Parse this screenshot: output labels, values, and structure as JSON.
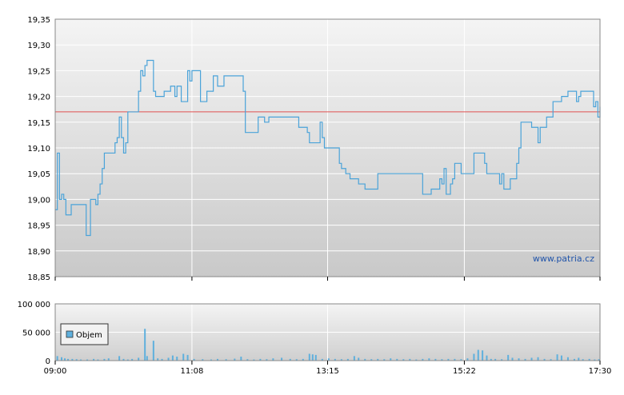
{
  "watermark": "www.patria.cz",
  "legend": {
    "label": "Objem"
  },
  "colors": {
    "price_line": "#4aa3d9",
    "reference_line": "#e05050",
    "volume_bar": "#5fb0dd",
    "plot_bg_top": "#f4f4f4",
    "plot_bg_bottom": "#c8c8c8",
    "grid": "#ffffff"
  },
  "chart_data": [
    {
      "type": "line",
      "name": "price",
      "x_tick_labels": [
        "09:00",
        "11:08",
        "13:15",
        "15:22",
        "17:30"
      ],
      "x_range_minutes": [
        0,
        510
      ],
      "ylim": [
        18.85,
        19.35
      ],
      "y_tick_labels": [
        "18,85",
        "18,90",
        "18,95",
        "19,00",
        "19,05",
        "19,10",
        "19,15",
        "19,20",
        "19,25",
        "19,30",
        "19,35"
      ],
      "y_ticks": [
        18.85,
        18.9,
        18.95,
        19.0,
        19.05,
        19.1,
        19.15,
        19.2,
        19.25,
        19.3,
        19.35
      ],
      "reference_value": 19.17,
      "grid": true,
      "points": [
        [
          0,
          18.98
        ],
        [
          2,
          19.09
        ],
        [
          4,
          19.0
        ],
        [
          6,
          19.01
        ],
        [
          8,
          19.0
        ],
        [
          10,
          18.97
        ],
        [
          13,
          18.97
        ],
        [
          15,
          18.99
        ],
        [
          28,
          18.99
        ],
        [
          29,
          18.93
        ],
        [
          31,
          18.93
        ],
        [
          33,
          19.0
        ],
        [
          37,
          19.0
        ],
        [
          38,
          18.99
        ],
        [
          40,
          19.01
        ],
        [
          42,
          19.03
        ],
        [
          44,
          19.06
        ],
        [
          46,
          19.09
        ],
        [
          54,
          19.09
        ],
        [
          56,
          19.11
        ],
        [
          58,
          19.12
        ],
        [
          60,
          19.16
        ],
        [
          62,
          19.12
        ],
        [
          64,
          19.09
        ],
        [
          66,
          19.11
        ],
        [
          68,
          19.17
        ],
        [
          76,
          19.17
        ],
        [
          78,
          19.21
        ],
        [
          80,
          19.25
        ],
        [
          82,
          19.24
        ],
        [
          84,
          19.26
        ],
        [
          86,
          19.27
        ],
        [
          90,
          19.27
        ],
        [
          92,
          19.21
        ],
        [
          94,
          19.2
        ],
        [
          100,
          19.2
        ],
        [
          102,
          19.21
        ],
        [
          106,
          19.21
        ],
        [
          108,
          19.22
        ],
        [
          112,
          19.2
        ],
        [
          114,
          19.22
        ],
        [
          116,
          19.22
        ],
        [
          118,
          19.19
        ],
        [
          122,
          19.19
        ],
        [
          124,
          19.25
        ],
        [
          126,
          19.23
        ],
        [
          128,
          19.25
        ],
        [
          134,
          19.25
        ],
        [
          136,
          19.19
        ],
        [
          140,
          19.19
        ],
        [
          142,
          19.21
        ],
        [
          146,
          19.21
        ],
        [
          148,
          19.24
        ],
        [
          152,
          19.22
        ],
        [
          156,
          19.22
        ],
        [
          158,
          19.24
        ],
        [
          174,
          19.24
        ],
        [
          176,
          19.21
        ],
        [
          178,
          19.13
        ],
        [
          188,
          19.13
        ],
        [
          190,
          19.16
        ],
        [
          196,
          19.15
        ],
        [
          200,
          19.16
        ],
        [
          226,
          19.16
        ],
        [
          228,
          19.14
        ],
        [
          234,
          19.14
        ],
        [
          236,
          19.13
        ],
        [
          238,
          19.11
        ],
        [
          246,
          19.11
        ],
        [
          248,
          19.15
        ],
        [
          250,
          19.12
        ],
        [
          252,
          19.1
        ],
        [
          264,
          19.1
        ],
        [
          266,
          19.07
        ],
        [
          268,
          19.06
        ],
        [
          272,
          19.05
        ],
        [
          276,
          19.04
        ],
        [
          282,
          19.04
        ],
        [
          284,
          19.03
        ],
        [
          290,
          19.02
        ],
        [
          300,
          19.02
        ],
        [
          302,
          19.05
        ],
        [
          342,
          19.05
        ],
        [
          344,
          19.01
        ],
        [
          350,
          19.01
        ],
        [
          352,
          19.02
        ],
        [
          358,
          19.02
        ],
        [
          360,
          19.04
        ],
        [
          362,
          19.03
        ],
        [
          364,
          19.06
        ],
        [
          366,
          19.01
        ],
        [
          370,
          19.03
        ],
        [
          372,
          19.04
        ],
        [
          374,
          19.07
        ],
        [
          378,
          19.07
        ],
        [
          380,
          19.05
        ],
        [
          390,
          19.05
        ],
        [
          392,
          19.09
        ],
        [
          400,
          19.09
        ],
        [
          402,
          19.07
        ],
        [
          404,
          19.05
        ],
        [
          414,
          19.05
        ],
        [
          416,
          19.03
        ],
        [
          418,
          19.05
        ],
        [
          420,
          19.02
        ],
        [
          424,
          19.02
        ],
        [
          426,
          19.04
        ],
        [
          430,
          19.04
        ],
        [
          432,
          19.07
        ],
        [
          434,
          19.1
        ],
        [
          436,
          19.15
        ],
        [
          444,
          19.15
        ],
        [
          446,
          19.14
        ],
        [
          450,
          19.14
        ],
        [
          452,
          19.11
        ],
        [
          454,
          19.14
        ],
        [
          458,
          19.14
        ],
        [
          460,
          19.16
        ],
        [
          464,
          19.16
        ],
        [
          466,
          19.19
        ],
        [
          472,
          19.19
        ],
        [
          474,
          19.2
        ],
        [
          478,
          19.2
        ],
        [
          480,
          19.21
        ],
        [
          486,
          19.21
        ],
        [
          488,
          19.19
        ],
        [
          490,
          19.2
        ],
        [
          492,
          19.21
        ],
        [
          502,
          19.21
        ],
        [
          504,
          19.18
        ],
        [
          506,
          19.19
        ],
        [
          508,
          19.16
        ],
        [
          510,
          19.18
        ],
        [
          512,
          19.18
        ],
        [
          514,
          19.17
        ]
      ]
    },
    {
      "type": "bar",
      "name": "Objem",
      "x_tick_labels": [
        "09:00",
        "11:08",
        "13:15",
        "15:22",
        "17:30"
      ],
      "x_range_minutes": [
        0,
        510
      ],
      "ylim": [
        0,
        100000
      ],
      "y_tick_labels": [
        "0",
        "50 000",
        "100 000"
      ],
      "y_ticks": [
        0,
        50000,
        100000
      ],
      "grid": true,
      "bars": [
        [
          2,
          8000
        ],
        [
          6,
          6000
        ],
        [
          9,
          4000
        ],
        [
          12,
          3000
        ],
        [
          16,
          3000
        ],
        [
          20,
          2500
        ],
        [
          24,
          2000
        ],
        [
          30,
          2000
        ],
        [
          36,
          3000
        ],
        [
          40,
          2000
        ],
        [
          46,
          3000
        ],
        [
          50,
          4000
        ],
        [
          60,
          8000
        ],
        [
          64,
          3000
        ],
        [
          68,
          2000
        ],
        [
          72,
          3000
        ],
        [
          78,
          5000
        ],
        [
          84,
          56000
        ],
        [
          86,
          8000
        ],
        [
          92,
          35000
        ],
        [
          96,
          4000
        ],
        [
          100,
          3000
        ],
        [
          106,
          5000
        ],
        [
          110,
          9000
        ],
        [
          114,
          7000
        ],
        [
          120,
          12000
        ],
        [
          124,
          10000
        ],
        [
          130,
          3000
        ],
        [
          138,
          2500
        ],
        [
          146,
          2000
        ],
        [
          152,
          3000
        ],
        [
          160,
          2500
        ],
        [
          168,
          3500
        ],
        [
          174,
          7000
        ],
        [
          180,
          2500
        ],
        [
          186,
          2000
        ],
        [
          192,
          3000
        ],
        [
          198,
          2500
        ],
        [
          204,
          4000
        ],
        [
          212,
          5000
        ],
        [
          220,
          3000
        ],
        [
          226,
          2500
        ],
        [
          232,
          3000
        ],
        [
          238,
          12000
        ],
        [
          241,
          11000
        ],
        [
          244,
          10000
        ],
        [
          250,
          3000
        ],
        [
          256,
          4000
        ],
        [
          262,
          3000
        ],
        [
          268,
          2500
        ],
        [
          274,
          3000
        ],
        [
          280,
          8000
        ],
        [
          284,
          5000
        ],
        [
          290,
          3000
        ],
        [
          296,
          2500
        ],
        [
          302,
          3000
        ],
        [
          308,
          2500
        ],
        [
          314,
          4000
        ],
        [
          320,
          3000
        ],
        [
          326,
          2500
        ],
        [
          332,
          3000
        ],
        [
          338,
          2000
        ],
        [
          344,
          3000
        ],
        [
          350,
          4000
        ],
        [
          356,
          3000
        ],
        [
          362,
          2500
        ],
        [
          368,
          3000
        ],
        [
          374,
          3000
        ],
        [
          380,
          2500
        ],
        [
          386,
          4000
        ],
        [
          392,
          12000
        ],
        [
          396,
          19000
        ],
        [
          400,
          18000
        ],
        [
          404,
          9000
        ],
        [
          408,
          3000
        ],
        [
          412,
          3000
        ],
        [
          418,
          2500
        ],
        [
          424,
          10000
        ],
        [
          428,
          5000
        ],
        [
          434,
          4000
        ],
        [
          440,
          3000
        ],
        [
          446,
          5000
        ],
        [
          452,
          6000
        ],
        [
          458,
          3000
        ],
        [
          464,
          2500
        ],
        [
          470,
          11000
        ],
        [
          474,
          9000
        ],
        [
          480,
          6000
        ],
        [
          486,
          3000
        ],
        [
          490,
          5000
        ],
        [
          494,
          2500
        ],
        [
          500,
          3000
        ],
        [
          505,
          2000
        ],
        [
          509,
          2500
        ]
      ]
    }
  ]
}
